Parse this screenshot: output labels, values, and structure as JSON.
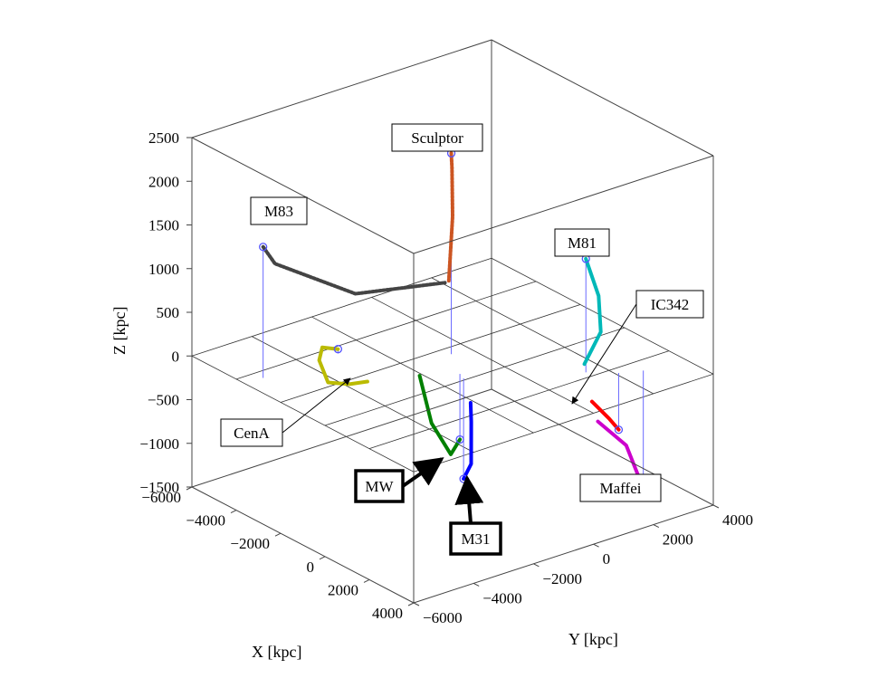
{
  "chart_data": {
    "type": "3d-line",
    "xlabel": "X [kpc]",
    "ylabel": "Y [kpc]",
    "zlabel": "Z [kpc]",
    "xlim": [
      -6000,
      4000
    ],
    "ylim": [
      -6000,
      4000
    ],
    "zlim": [
      -1500,
      2500
    ],
    "x_ticks": [
      "−6000",
      "−4000",
      "−2000",
      "0",
      "2000",
      "4000"
    ],
    "y_ticks": [
      "−6000",
      "−4000",
      "−2000",
      "0",
      "2000",
      "4000"
    ],
    "z_ticks": [
      "2500",
      "2000",
      "1500",
      "1000",
      "500",
      "0",
      "−500",
      "−1000",
      "−1500"
    ],
    "grid_plane_z": 0,
    "series": [
      {
        "name": "MW",
        "color": "#008000",
        "style": "solid",
        "label_box": "bold",
        "points": [
          [
            -1000,
            -2100,
            0
          ],
          [
            -600,
            -2000,
            -500
          ],
          [
            0,
            -1800,
            -800
          ],
          [
            -400,
            -1200,
            -750
          ]
        ]
      },
      {
        "name": "M31",
        "color": "#0000ff",
        "style": "solid",
        "label_box": "bold",
        "points": [
          [
            -100,
            -1300,
            -1150
          ],
          [
            -300,
            -900,
            -1050
          ],
          [
            -700,
            -600,
            -650
          ],
          [
            -1000,
            -400,
            -500
          ]
        ]
      },
      {
        "name": "M83",
        "color": "#444444",
        "style": "dashed",
        "label_box": "normal",
        "points": [
          [
            -3600,
            -5400,
            1500
          ],
          [
            -3200,
            -5300,
            1350
          ],
          [
            -1600,
            -3800,
            1050
          ],
          [
            -400,
            -1700,
            1100
          ]
        ]
      },
      {
        "name": "CenA",
        "color": "#bbbb00",
        "style": "solid",
        "label_box": "normal",
        "points": [
          [
            -1600,
            -3400,
            0
          ],
          [
            -2000,
            -3700,
            -50
          ],
          [
            -2700,
            -3900,
            -100
          ],
          [
            -3100,
            -3900,
            100
          ],
          [
            -3500,
            -3500,
            150
          ],
          [
            -3600,
            -2900,
            50
          ]
        ]
      },
      {
        "name": "Sculptor",
        "color": "#cc5522",
        "style": "dashed",
        "label_box": "normal",
        "points": [
          [
            -900,
            -1200,
            1000
          ],
          [
            -1000,
            -1000,
            1700
          ],
          [
            -1300,
            -800,
            2200
          ],
          [
            -1600,
            -600,
            2300
          ]
        ]
      },
      {
        "name": "M81",
        "color": "#00b8b8",
        "style": "solid",
        "label_box": "normal",
        "points": [
          [
            1700,
            1450,
            1300
          ],
          [
            1800,
            1800,
            850
          ],
          [
            1900,
            1800,
            450
          ],
          [
            1700,
            1400,
            100
          ]
        ]
      },
      {
        "name": "IC342",
        "color": "#ff0000",
        "style": "solid",
        "label_box": "normal",
        "points": [
          [
            1500,
            1800,
            -400
          ],
          [
            2000,
            2000,
            -550
          ],
          [
            2300,
            2100,
            -650
          ]
        ]
      },
      {
        "name": "Maffei",
        "color": "#cc00cc",
        "style": "solid",
        "label_box": "normal",
        "points": [
          [
            1500,
            2000,
            -650
          ],
          [
            2100,
            2500,
            -900
          ],
          [
            2600,
            2700,
            -1350
          ]
        ]
      }
    ],
    "markers": [
      {
        "name": "MW",
        "point": [
          -400,
          -1200,
          -750
        ]
      },
      {
        "name": "M31",
        "point": [
          -100,
          -1300,
          -1150
        ]
      },
      {
        "name": "M83",
        "point": [
          -3600,
          -5400,
          1500
        ]
      },
      {
        "name": "CenA",
        "point": [
          -3600,
          -2900,
          50
        ]
      },
      {
        "name": "Sculptor",
        "point": [
          -1600,
          -600,
          2300
        ]
      },
      {
        "name": "M81",
        "point": [
          1700,
          1450,
          1300
        ]
      },
      {
        "name": "IC342",
        "point": [
          2300,
          2100,
          -650
        ]
      },
      {
        "name": "Maffei",
        "point": [
          2600,
          2700,
          -1350
        ]
      }
    ],
    "labels": {
      "MW": "MW",
      "M31": "M31",
      "M83": "M83",
      "CenA": "CenA",
      "Sculptor": "Sculptor",
      "M81": "M81",
      "IC342": "IC342",
      "Maffei": "Maffei"
    },
    "colors": {
      "drop_line": "#6a6aff",
      "marker": "#5555ff",
      "box": "#444444",
      "grid": "#333333"
    }
  }
}
